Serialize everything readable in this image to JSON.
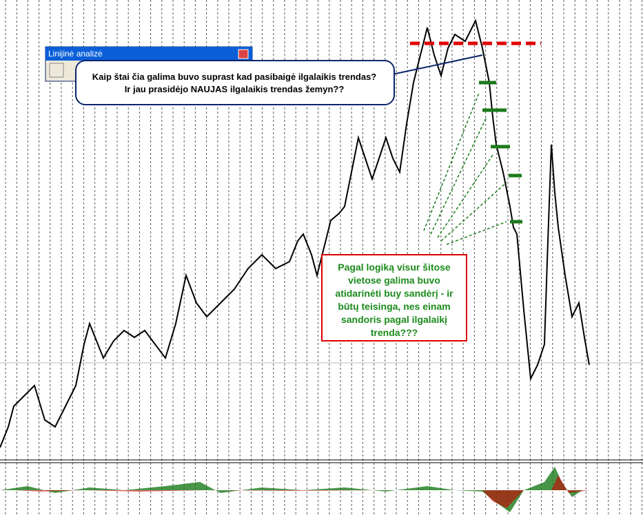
{
  "window": {
    "title": "Linijinė analizė"
  },
  "callout": {
    "lines": [
      "Kaip štai čia galima buvo suprast kad pasibaigė ilgalaikis trendas?",
      "Ir jau prasidėjo NAUJAS ilgalaikis trendas žemyn??"
    ]
  },
  "note": {
    "lines": [
      "Pagal logiką visur šitose",
      "vietose galima buvo",
      "atidarinėti buy sandėrį - ir",
      "būtų teisinga, nes einam",
      "sandoris pagal ilgalaikį",
      "trenda???"
    ]
  }
}
